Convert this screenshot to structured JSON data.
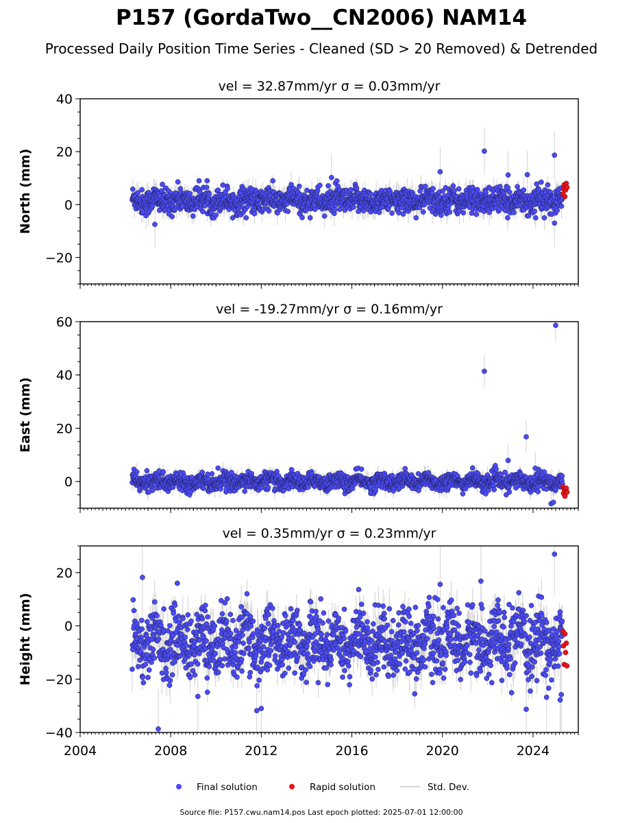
{
  "title": "P157 (GordaTwo__CN2006) NAM14",
  "subtitle": "Processed Daily Position Time Series - Cleaned (SD > 20 Removed) & Detrended",
  "legend": {
    "final": "Final solution",
    "rapid": "Rapid solution",
    "std": "Std. Dev."
  },
  "colors": {
    "final": "#4b4bf5",
    "rapid": "#e8141c",
    "std": "#c8c8c8"
  },
  "footer": "Source file: P157.cwu.nam14.pos  Last epoch plotted: 2025-07-01 12:00:00",
  "chart_data": [
    {
      "type": "scatter",
      "title": "vel = 32.87mm/yr   σ = 0.03mm/yr",
      "ylabel": "North (mm)",
      "xlim": [
        2004,
        2026
      ],
      "ylim": [
        -30,
        40
      ],
      "yticks": [
        -20,
        0,
        20,
        40
      ],
      "ytick_labels": [
        "−20",
        "0",
        "20",
        "40"
      ],
      "grid": false,
      "legend": "below",
      "data_span": [
        2006.3,
        2025.5
      ],
      "rapid_span": [
        2025.3,
        2025.5
      ],
      "series": [
        {
          "name": "Final solution",
          "summary": {
            "center": 1.5,
            "spread": 2.4,
            "band": [
              -5,
              9
            ]
          },
          "notable_points": [
            [
              2021.85,
              20.2
            ],
            [
              2024.95,
              18.7
            ],
            [
              2019.9,
              12.4
            ],
            [
              2015.1,
              10.2
            ],
            [
              2022.9,
              11.2
            ],
            [
              2023.75,
              11.3
            ],
            [
              2007.3,
              -7.5
            ],
            [
              2024.95,
              -7.0
            ]
          ]
        },
        {
          "name": "Rapid solution",
          "points": [
            [
              2025.32,
              4.0
            ],
            [
              2025.35,
              6.0
            ],
            [
              2025.38,
              7.5
            ],
            [
              2025.41,
              3.0
            ],
            [
              2025.44,
              5.5
            ],
            [
              2025.47,
              8.0
            ],
            [
              2025.5,
              6.5
            ]
          ]
        }
      ],
      "std_dev_typical": 3
    },
    {
      "type": "scatter",
      "title": "vel = -19.27mm/yr   σ = 0.16mm/yr",
      "ylabel": "East (mm)",
      "xlim": [
        2004,
        2026
      ],
      "ylim": [
        -10,
        60
      ],
      "yticks": [
        0,
        20,
        40,
        60
      ],
      "ytick_labels": [
        "0",
        "20",
        "40",
        "60"
      ],
      "grid": false,
      "legend": "below",
      "data_span": [
        2006.3,
        2025.5
      ],
      "rapid_span": [
        2025.3,
        2025.5
      ],
      "series": [
        {
          "name": "Final solution",
          "summary": {
            "center": 0,
            "spread": 1.5,
            "band": [
              -5,
              6
            ]
          },
          "notable_points": [
            [
              2021.85,
              41.4
            ],
            [
              2025.0,
              58.6
            ],
            [
              2023.7,
              16.8
            ],
            [
              2022.9,
              7.9
            ],
            [
              2024.8,
              -8.3
            ],
            [
              2024.9,
              -7.8
            ],
            [
              2024.1,
              5.0
            ]
          ]
        },
        {
          "name": "Rapid solution",
          "points": [
            [
              2025.32,
              -2.0
            ],
            [
              2025.35,
              -4.5
            ],
            [
              2025.38,
              -3.0
            ],
            [
              2025.41,
              -5.5
            ],
            [
              2025.44,
              -3.5
            ],
            [
              2025.47,
              -2.5
            ],
            [
              2025.5,
              -4.0
            ]
          ]
        }
      ],
      "std_dev_typical": 2
    },
    {
      "type": "scatter",
      "title": "vel = 0.35mm/yr   σ = 0.23mm/yr",
      "ylabel": "Height (mm)",
      "xlim": [
        2004,
        2026
      ],
      "ylim": [
        -40,
        30
      ],
      "yticks": [
        -40,
        -20,
        0,
        20
      ],
      "ytick_labels": [
        "−40",
        "−20",
        "0",
        "20"
      ],
      "xticks": [
        2004,
        2008,
        2012,
        2016,
        2020,
        2024
      ],
      "xtick_labels": [
        "2004",
        "2008",
        "2012",
        "2016",
        "2020",
        "2024"
      ],
      "grid": false,
      "legend": "below",
      "data_span": [
        2006.3,
        2025.5
      ],
      "rapid_span": [
        2025.3,
        2025.5
      ],
      "series": [
        {
          "name": "Final solution",
          "summary": {
            "center": -6,
            "spread": 6,
            "band": [
              -26,
              16
            ]
          },
          "notable_points": [
            [
              2007.45,
              -38.7
            ],
            [
              2024.95,
              26.9
            ],
            [
              2006.75,
              18.2
            ],
            [
              2011.8,
              -31.8
            ],
            [
              2012.0,
              -31.0
            ],
            [
              2023.7,
              -31.3
            ],
            [
              2021.7,
              16.8
            ],
            [
              2019.9,
              15.6
            ],
            [
              2009.2,
              -26.5
            ],
            [
              2024.6,
              -26.8
            ],
            [
              2025.2,
              -27.8
            ],
            [
              2025.25,
              -25.8
            ]
          ]
        },
        {
          "name": "Rapid solution",
          "points": [
            [
              2025.32,
              -2.0
            ],
            [
              2025.35,
              -7.5
            ],
            [
              2025.38,
              -14.5
            ],
            [
              2025.41,
              -3.0
            ],
            [
              2025.44,
              -10.0
            ],
            [
              2025.47,
              -6.5
            ],
            [
              2025.5,
              -15.0
            ]
          ]
        }
      ],
      "std_dev_typical": 5
    }
  ]
}
